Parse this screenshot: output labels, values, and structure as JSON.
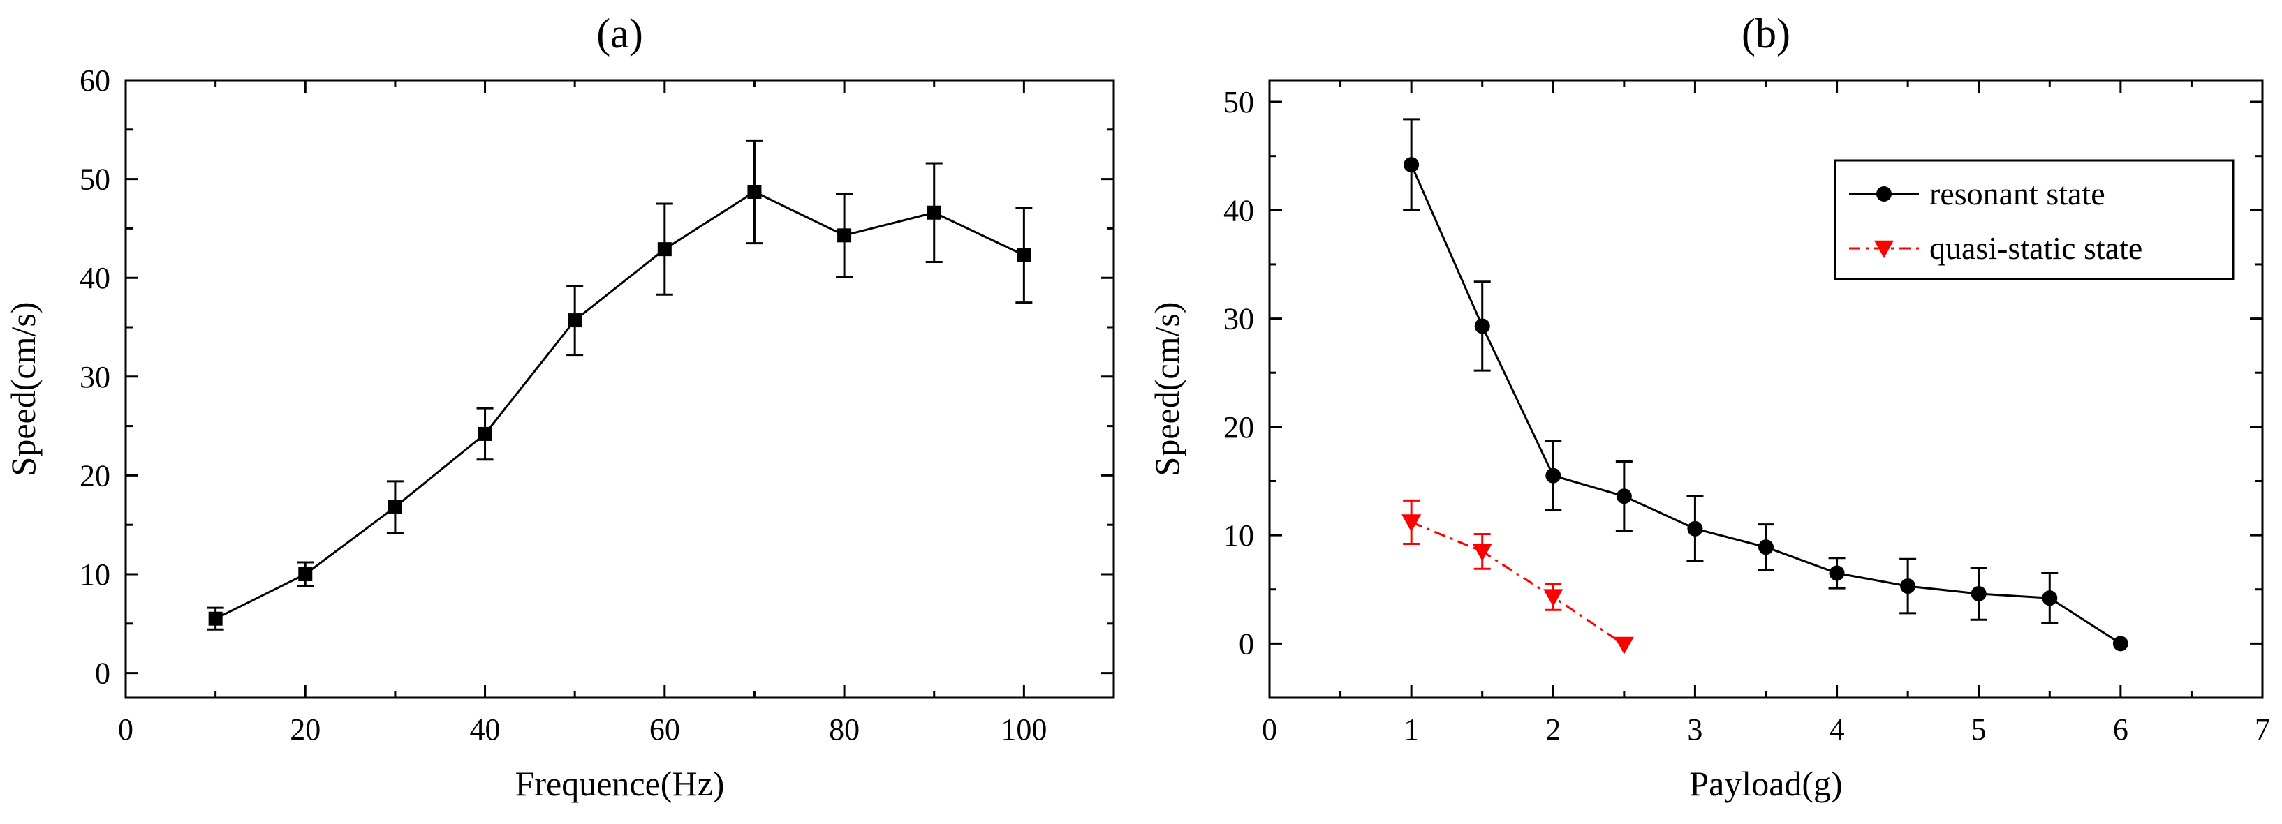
{
  "chart_data": [
    {
      "type": "line",
      "title": "(a)",
      "xlabel": "Frequence(Hz)",
      "ylabel": "Speed(cm/s)",
      "xlim": [
        0,
        110
      ],
      "ylim": [
        -2.5,
        60
      ],
      "xticks": [
        0,
        20,
        40,
        60,
        80,
        100
      ],
      "yticks": [
        0,
        10,
        20,
        30,
        40,
        50,
        60
      ],
      "grid": false,
      "series": [
        {
          "name": "speed",
          "color": "#000000",
          "marker": "square",
          "x": [
            10,
            20,
            30,
            40,
            50,
            60,
            70,
            80,
            90,
            100
          ],
          "y": [
            5.5,
            10.0,
            16.8,
            24.2,
            35.7,
            42.9,
            48.7,
            44.3,
            46.6,
            42.3
          ],
          "error": [
            1.1,
            1.2,
            2.6,
            2.6,
            3.5,
            4.6,
            5.2,
            4.2,
            5.0,
            4.8
          ]
        }
      ]
    },
    {
      "type": "line",
      "title": "(b)",
      "xlabel": "Payload(g)",
      "ylabel": "Speed(cm/s)",
      "xlim": [
        0,
        7
      ],
      "ylim": [
        -5,
        52
      ],
      "xticks": [
        0,
        1,
        2,
        3,
        4,
        5,
        6,
        7
      ],
      "yticks": [
        0,
        10,
        20,
        30,
        40,
        50
      ],
      "grid": false,
      "legend_position": "top-right",
      "series": [
        {
          "name": "resonant state",
          "color": "#000000",
          "marker": "circle",
          "line_style": "solid",
          "x": [
            1,
            1.5,
            2,
            2.5,
            3,
            3.5,
            4,
            4.5,
            5,
            5.5,
            6
          ],
          "y": [
            44.2,
            29.3,
            15.5,
            13.6,
            10.6,
            8.9,
            6.5,
            5.3,
            4.6,
            4.2,
            0
          ],
          "error": [
            4.2,
            4.1,
            3.2,
            3.2,
            3.0,
            2.1,
            1.4,
            2.5,
            2.4,
            2.3,
            0
          ]
        },
        {
          "name": "quasi-static state",
          "color": "#ff0000",
          "marker": "triangle-down",
          "line_style": "dash-dot",
          "x": [
            1,
            1.5,
            2,
            2.5
          ],
          "y": [
            11.2,
            8.5,
            4.3,
            -0.1
          ],
          "error": [
            2.0,
            1.6,
            1.2,
            0
          ]
        }
      ]
    }
  ]
}
